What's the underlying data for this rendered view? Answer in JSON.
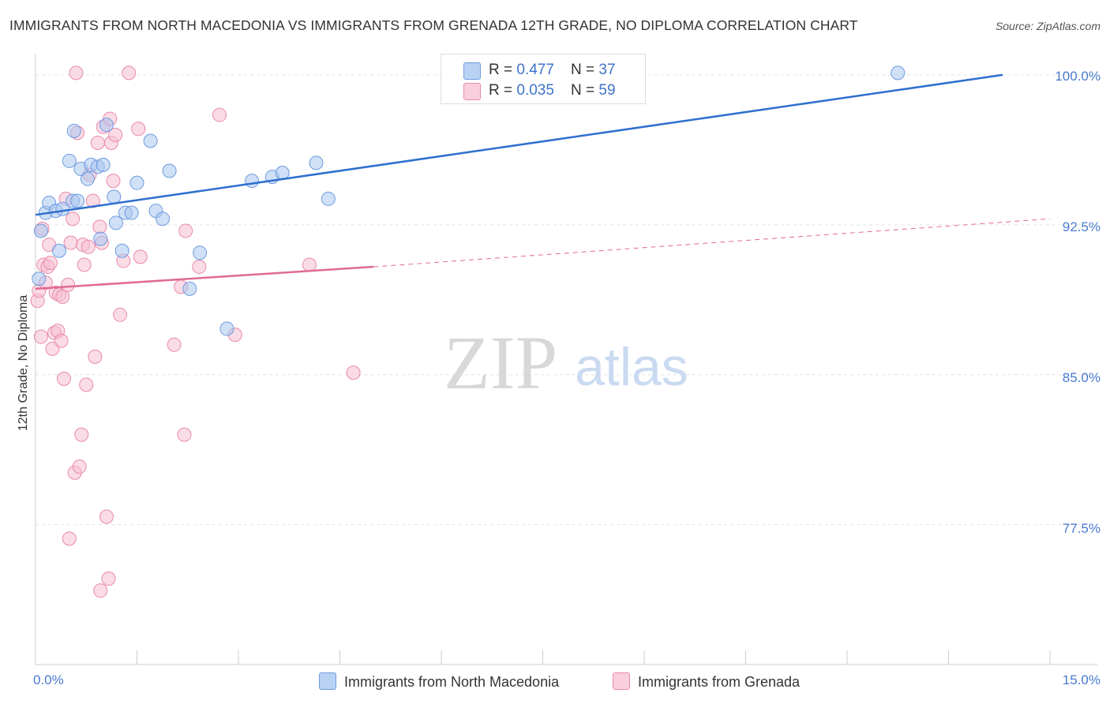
{
  "title": "IMMIGRANTS FROM NORTH MACEDONIA VS IMMIGRANTS FROM GRENADA 12TH GRADE, NO DIPLOMA CORRELATION CHART",
  "source": "Source: ZipAtlas.com",
  "watermark": {
    "zip": "ZIP",
    "atlas": "atlas"
  },
  "legend": {
    "rows": [
      {
        "r_label": "R = ",
        "r_value": "0.477",
        "n_label": "N = ",
        "n_value": "37"
      },
      {
        "r_label": "R = ",
        "r_value": "0.035",
        "n_label": "N = ",
        "n_value": "59"
      }
    ]
  },
  "colors": {
    "blue_fill": "#a9c6ef",
    "blue_stroke": "#6e9be0",
    "blue_line": "#2f6fcf",
    "pink_fill": "#f6bfd2",
    "pink_stroke": "#e98aab",
    "pink_line": "#e06a95",
    "grid": "#e2e2e2",
    "axis_text": "#4a7bd0"
  },
  "chart_data": {
    "type": "scatter",
    "title": "IMMIGRANTS FROM NORTH MACEDONIA VS IMMIGRANTS FROM GRENADA 12TH GRADE, NO DIPLOMA CORRELATION CHART",
    "xlabel": "",
    "ylabel": "12th Grade, No Diploma",
    "xlim": [
      0,
      15
    ],
    "ylim": [
      70.5,
      101.3
    ],
    "x_tick_labels": [
      "0.0%",
      "15.0%"
    ],
    "y_ticks": [
      77.5,
      85.0,
      92.5,
      100.0
    ],
    "y_tick_labels": [
      "77.5%",
      "85.0%",
      "92.5%",
      "100.0%"
    ],
    "series": [
      {
        "name": "Immigrants from North Macedonia",
        "color": "blue",
        "R": 0.477,
        "N": 37,
        "trend": {
          "x": [
            0,
            14.3
          ],
          "y": [
            93.0,
            100.0
          ],
          "dashed_to": null
        },
        "points": [
          {
            "x": 0.05,
            "y": 89.8
          },
          {
            "x": 0.08,
            "y": 92.2
          },
          {
            "x": 0.15,
            "y": 93.1
          },
          {
            "x": 0.2,
            "y": 93.6
          },
          {
            "x": 0.3,
            "y": 93.2
          },
          {
            "x": 0.35,
            "y": 91.2
          },
          {
            "x": 0.4,
            "y": 93.3
          },
          {
            "x": 0.5,
            "y": 95.7
          },
          {
            "x": 0.55,
            "y": 93.7
          },
          {
            "x": 0.57,
            "y": 97.2
          },
          {
            "x": 0.62,
            "y": 93.7
          },
          {
            "x": 0.67,
            "y": 95.3
          },
          {
            "x": 0.77,
            "y": 94.8
          },
          {
            "x": 0.82,
            "y": 95.5
          },
          {
            "x": 0.92,
            "y": 95.4
          },
          {
            "x": 0.96,
            "y": 91.8
          },
          {
            "x": 1.0,
            "y": 95.5
          },
          {
            "x": 1.05,
            "y": 97.5
          },
          {
            "x": 1.16,
            "y": 93.9
          },
          {
            "x": 1.19,
            "y": 92.6
          },
          {
            "x": 1.28,
            "y": 91.2
          },
          {
            "x": 1.33,
            "y": 93.1
          },
          {
            "x": 1.42,
            "y": 93.1
          },
          {
            "x": 1.5,
            "y": 94.6
          },
          {
            "x": 1.7,
            "y": 96.7
          },
          {
            "x": 1.78,
            "y": 93.2
          },
          {
            "x": 1.88,
            "y": 92.8
          },
          {
            "x": 1.98,
            "y": 95.2
          },
          {
            "x": 2.28,
            "y": 89.3
          },
          {
            "x": 2.43,
            "y": 91.1
          },
          {
            "x": 2.83,
            "y": 87.3
          },
          {
            "x": 3.2,
            "y": 94.7
          },
          {
            "x": 3.5,
            "y": 94.9
          },
          {
            "x": 3.65,
            "y": 95.1
          },
          {
            "x": 4.15,
            "y": 95.6
          },
          {
            "x": 4.33,
            "y": 93.8
          },
          {
            "x": 12.75,
            "y": 100.1
          }
        ]
      },
      {
        "name": "Immigrants from Grenada",
        "color": "pink",
        "R": 0.035,
        "N": 59,
        "trend": {
          "x": [
            0,
            5.0
          ],
          "y": [
            89.3,
            90.4
          ],
          "dashed_to": {
            "x": 15,
            "y": 92.8
          }
        },
        "points": [
          {
            "x": 0.03,
            "y": 88.7
          },
          {
            "x": 0.05,
            "y": 89.2
          },
          {
            "x": 0.08,
            "y": 86.9
          },
          {
            "x": 0.1,
            "y": 92.3
          },
          {
            "x": 0.12,
            "y": 90.5
          },
          {
            "x": 0.15,
            "y": 89.6
          },
          {
            "x": 0.18,
            "y": 90.4
          },
          {
            "x": 0.2,
            "y": 91.5
          },
          {
            "x": 0.22,
            "y": 90.6
          },
          {
            "x": 0.25,
            "y": 86.3
          },
          {
            "x": 0.28,
            "y": 87.1
          },
          {
            "x": 0.3,
            "y": 89.1
          },
          {
            "x": 0.33,
            "y": 87.2
          },
          {
            "x": 0.35,
            "y": 89.0
          },
          {
            "x": 0.38,
            "y": 86.7
          },
          {
            "x": 0.42,
            "y": 84.8
          },
          {
            "x": 0.45,
            "y": 93.8
          },
          {
            "x": 0.48,
            "y": 89.5
          },
          {
            "x": 0.5,
            "y": 76.8
          },
          {
            "x": 0.52,
            "y": 91.6
          },
          {
            "x": 0.55,
            "y": 92.8
          },
          {
            "x": 0.58,
            "y": 80.1
          },
          {
            "x": 0.6,
            "y": 100.1
          },
          {
            "x": 0.62,
            "y": 97.1
          },
          {
            "x": 0.65,
            "y": 80.4
          },
          {
            "x": 0.68,
            "y": 82.0
          },
          {
            "x": 0.7,
            "y": 91.5
          },
          {
            "x": 0.72,
            "y": 90.5
          },
          {
            "x": 0.75,
            "y": 84.5
          },
          {
            "x": 0.78,
            "y": 91.4
          },
          {
            "x": 0.8,
            "y": 95.0
          },
          {
            "x": 0.85,
            "y": 93.7
          },
          {
            "x": 0.88,
            "y": 85.9
          },
          {
            "x": 0.92,
            "y": 96.6
          },
          {
            "x": 0.95,
            "y": 92.4
          },
          {
            "x": 0.96,
            "y": 74.2
          },
          {
            "x": 0.98,
            "y": 91.6
          },
          {
            "x": 1.0,
            "y": 97.4
          },
          {
            "x": 1.05,
            "y": 77.9
          },
          {
            "x": 1.08,
            "y": 74.8
          },
          {
            "x": 1.1,
            "y": 97.8
          },
          {
            "x": 1.12,
            "y": 96.6
          },
          {
            "x": 1.15,
            "y": 94.7
          },
          {
            "x": 1.18,
            "y": 97.0
          },
          {
            "x": 1.25,
            "y": 88.0
          },
          {
            "x": 1.3,
            "y": 90.7
          },
          {
            "x": 1.38,
            "y": 100.1
          },
          {
            "x": 1.52,
            "y": 97.3
          },
          {
            "x": 1.55,
            "y": 90.9
          },
          {
            "x": 2.05,
            "y": 86.5
          },
          {
            "x": 2.15,
            "y": 89.4
          },
          {
            "x": 2.2,
            "y": 82.0
          },
          {
            "x": 2.22,
            "y": 92.2
          },
          {
            "x": 2.42,
            "y": 90.4
          },
          {
            "x": 2.72,
            "y": 98.0
          },
          {
            "x": 2.95,
            "y": 87.0
          },
          {
            "x": 4.05,
            "y": 90.5
          },
          {
            "x": 4.7,
            "y": 85.1
          },
          {
            "x": 0.4,
            "y": 88.9
          }
        ]
      }
    ]
  },
  "bottom_legend": [
    "Immigrants from North Macedonia",
    "Immigrants from Grenada"
  ]
}
